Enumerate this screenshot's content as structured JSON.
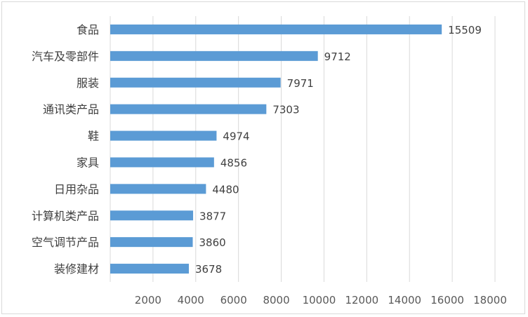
{
  "chart_data": {
    "type": "bar",
    "orientation": "horizontal",
    "categories": [
      "食品",
      "汽车及零部件",
      "服装",
      "通讯类产品",
      "鞋",
      "家具",
      "日用杂品",
      "计算机类产品",
      "空气调节产品",
      "装修建材"
    ],
    "values": [
      15509,
      9712,
      7971,
      7303,
      4974,
      4856,
      4480,
      3877,
      3860,
      3678
    ],
    "data_labels": [
      "15509",
      "9712",
      "7971",
      "7303",
      "4974",
      "4856",
      "4480",
      "3877",
      "3860",
      "3678"
    ],
    "x_ticks": [
      "2000",
      "4000",
      "6000",
      "8000",
      "10000",
      "12000",
      "14000",
      "16000",
      "18000"
    ],
    "xlim": [
      0,
      18000
    ],
    "grid": "vertical",
    "legend": "none",
    "bar_color": "#5b9bd5",
    "title": "",
    "xlabel": "",
    "ylabel": ""
  }
}
